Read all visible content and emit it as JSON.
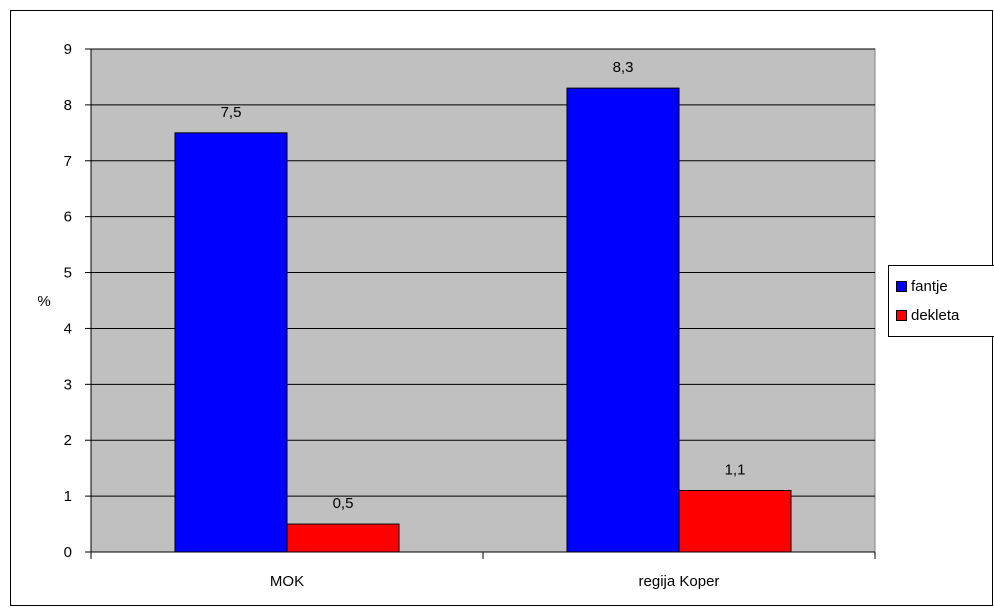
{
  "chart_data": {
    "type": "bar",
    "categories": [
      "MOK",
      "regija Koper"
    ],
    "series": [
      {
        "name": "fantje",
        "values": [
          7.5,
          8.3
        ],
        "color": "#0000FF"
      },
      {
        "name": "dekleta",
        "values": [
          0.5,
          1.1
        ],
        "color": "#FF0000"
      }
    ],
    "value_labels": [
      [
        "7,5",
        "8,3"
      ],
      [
        "0,5",
        "1,1"
      ]
    ],
    "title": "",
    "xlabel": "",
    "ylabel": "%",
    "ylim": [
      0,
      9
    ],
    "yticks": [
      "0",
      "1",
      "2",
      "3",
      "4",
      "5",
      "6",
      "7",
      "8",
      "9"
    ],
    "grid": true,
    "plot_background": "#C0C0C0",
    "legend_position": "right"
  }
}
